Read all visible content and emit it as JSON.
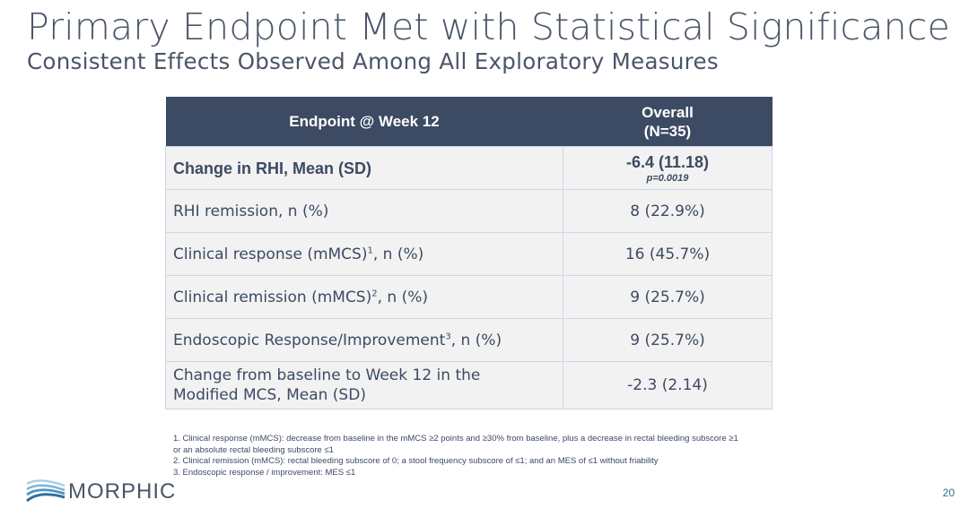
{
  "slide": {
    "title": "Primary Endpoint Met with Statistical Significance",
    "subtitle": "Consistent Effects Observed Among All Exploratory Measures",
    "page_number": "20"
  },
  "table": {
    "header": {
      "endpoint": "Endpoint @ Week 12",
      "overall_line1": "Overall",
      "overall_line2": "(N=35)"
    },
    "rows": [
      {
        "label": "Change in RHI, Mean (SD)",
        "sup": "",
        "suffix": "",
        "value": "-6.4 (11.18)",
        "note": "p=0.0019"
      },
      {
        "label": "RHI remission, n (%)",
        "sup": "",
        "suffix": "",
        "value": "8 (22.9%)",
        "note": ""
      },
      {
        "label": "Clinical response (mMCS)",
        "sup": "1",
        "suffix": ", n (%)",
        "value": "16 (45.7%)",
        "note": ""
      },
      {
        "label": "Clinical remission (mMCS)",
        "sup": "2",
        "suffix": ", n (%)",
        "value": "9 (25.7%)",
        "note": ""
      },
      {
        "label": "Endoscopic Response/Improvement",
        "sup": "3",
        "suffix": ", n (%)",
        "value": "9 (25.7%)",
        "note": ""
      },
      {
        "label_line1": "Change from baseline to Week 12 in the",
        "label_line2": "Modified MCS, Mean (SD)",
        "value": "-2.3 (2.14)"
      }
    ]
  },
  "footnotes": [
    "1. Clinical response (mMCS): decrease from baseline in the mMCS ≥2 points and ≥30% from baseline, plus a decrease in rectal bleeding subscore ≥1 or an absolute rectal bleeding subscore ≤1",
    "2. Clinical remission (mMCS): rectal bleeding subscore of 0; a stool frequency subscore of ≤1; and an MES of ≤1 without friability",
    "3. Endoscopic response / improvement: MES ≤1"
  ],
  "logo": {
    "text": "MORPHIC"
  },
  "colors": {
    "header_bg": "#3c4a63",
    "cell_bg": "#f2f2f2",
    "cell_border": "#ccd7e8",
    "text": "#3c4a63",
    "accent": "#3a7ca8"
  }
}
